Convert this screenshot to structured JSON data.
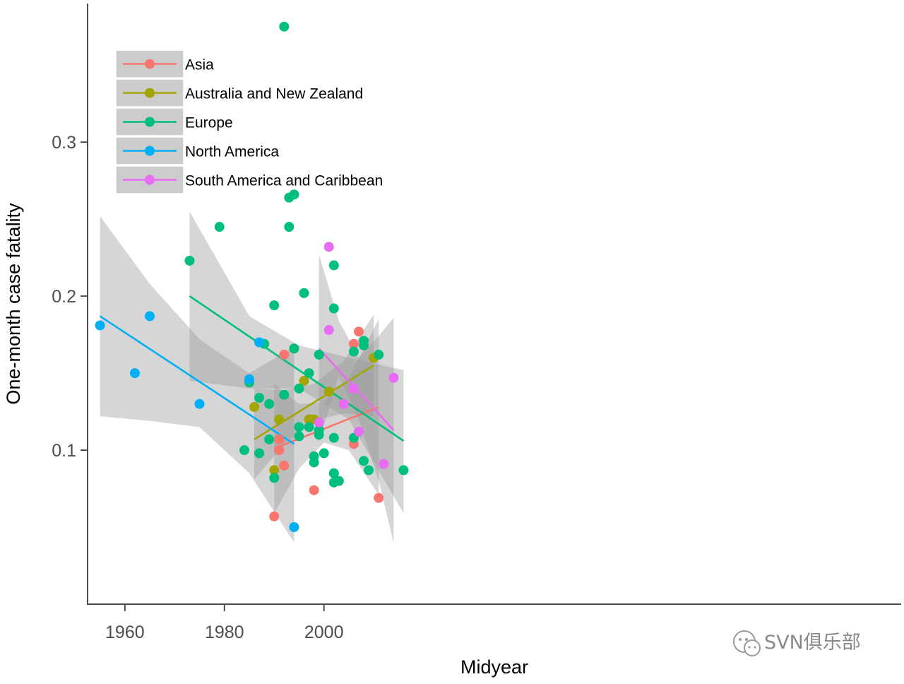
{
  "colors": {
    "Asia": "#F8766D",
    "Australia and New Zealand": "#A3A500",
    "Europe": "#00BF7D",
    "North America": "#00B0F6",
    "South America and Caribbean": "#E76BF3",
    "ribbon": "#999999",
    "axis": "#4d4d4d"
  },
  "watermark": {
    "text": "SVN俱乐部",
    "icon": "wechat-icon"
  },
  "chart_data": {
    "type": "scatter",
    "title": "",
    "xlabel": "Midyear",
    "ylabel": "One-month case fatality",
    "xlim": [
      1952.5,
      2116.0
    ],
    "ylim": [
      0.0,
      0.39
    ],
    "xticks": [
      1960,
      1980,
      2000
    ],
    "xtick_labels": [
      "1960",
      "1980",
      "2000"
    ],
    "yticks": [
      0.1,
      0.2,
      0.3
    ],
    "ytick_labels": [
      "0.1",
      "0.2",
      "0.3"
    ],
    "grid": false,
    "legend_position": "top-left",
    "series": [
      {
        "name": "Asia",
        "points": [
          [
            1990,
            0.057
          ],
          [
            1991,
            0.107
          ],
          [
            1991,
            0.1
          ],
          [
            1992,
            0.162
          ],
          [
            1992,
            0.09
          ],
          [
            1998,
            0.074
          ],
          [
            2006,
            0.169
          ],
          [
            2006,
            0.104
          ],
          [
            2007,
            0.177
          ],
          [
            2011,
            0.069
          ]
        ],
        "fit": {
          "x": [
            1990,
            2011
          ],
          "y": [
            0.101,
            0.128
          ]
        },
        "ci": {
          "x": [
            1990,
            1995,
            2000,
            2005,
            2011
          ],
          "upper": [
            0.143,
            0.13,
            0.131,
            0.147,
            0.185
          ],
          "lower": [
            0.059,
            0.088,
            0.105,
            0.1,
            0.071
          ]
        }
      },
      {
        "name": "Australia and New Zealand",
        "points": [
          [
            1986,
            0.128
          ],
          [
            1990,
            0.087
          ],
          [
            1991,
            0.12
          ],
          [
            1996,
            0.145
          ],
          [
            1997,
            0.12
          ],
          [
            1998,
            0.12
          ],
          [
            2001,
            0.138
          ],
          [
            2010,
            0.16
          ]
        ],
        "fit": {
          "x": [
            1986,
            2010
          ],
          "y": [
            0.107,
            0.155
          ]
        },
        "ci": {
          "x": [
            1986,
            1992,
            1998,
            2004,
            2010
          ],
          "upper": [
            0.14,
            0.139,
            0.143,
            0.158,
            0.188
          ],
          "lower": [
            0.081,
            0.104,
            0.119,
            0.124,
            0.122
          ]
        }
      },
      {
        "name": "Europe",
        "points": [
          [
            1973,
            0.223
          ],
          [
            1979,
            0.245
          ],
          [
            1984,
            0.1
          ],
          [
            1985,
            0.144
          ],
          [
            1987,
            0.134
          ],
          [
            1987,
            0.098
          ],
          [
            1988,
            0.169
          ],
          [
            1989,
            0.13
          ],
          [
            1989,
            0.107
          ],
          [
            1990,
            0.194
          ],
          [
            1990,
            0.082
          ],
          [
            1992,
            0.375
          ],
          [
            1992,
            0.136
          ],
          [
            1993,
            0.264
          ],
          [
            1993,
            0.245
          ],
          [
            1994,
            0.266
          ],
          [
            1994,
            0.166
          ],
          [
            1995,
            0.14
          ],
          [
            1995,
            0.115
          ],
          [
            1995,
            0.109
          ],
          [
            1996,
            0.202
          ],
          [
            1997,
            0.15
          ],
          [
            1997,
            0.115
          ],
          [
            1998,
            0.096
          ],
          [
            1998,
            0.092
          ],
          [
            1999,
            0.162
          ],
          [
            1999,
            0.11
          ],
          [
            1999,
            0.113
          ],
          [
            2000,
            0.098
          ],
          [
            2002,
            0.22
          ],
          [
            2002,
            0.192
          ],
          [
            2002,
            0.108
          ],
          [
            2002,
            0.085
          ],
          [
            2002,
            0.079
          ],
          [
            2003,
            0.08
          ],
          [
            2006,
            0.164
          ],
          [
            2006,
            0.108
          ],
          [
            2008,
            0.171
          ],
          [
            2008,
            0.168
          ],
          [
            2008,
            0.093
          ],
          [
            2009,
            0.087
          ],
          [
            2011,
            0.162
          ],
          [
            2016,
            0.087
          ]
        ],
        "fit": {
          "x": [
            1973,
            2016
          ],
          "y": [
            0.2,
            0.106
          ]
        },
        "ci": {
          "x": [
            1973,
            1985,
            1995,
            2005,
            2016
          ],
          "upper": [
            0.255,
            0.187,
            0.168,
            0.16,
            0.152
          ],
          "lower": [
            0.145,
            0.14,
            0.14,
            0.12,
            0.059
          ]
        }
      },
      {
        "name": "North America",
        "points": [
          [
            1955,
            0.181
          ],
          [
            1962,
            0.15
          ],
          [
            1965,
            0.187
          ],
          [
            1975,
            0.13
          ],
          [
            1985,
            0.146
          ],
          [
            1987,
            0.17
          ],
          [
            1994,
            0.05
          ]
        ],
        "fit": {
          "x": [
            1955,
            1994
          ],
          "y": [
            0.187,
            0.104
          ]
        },
        "ci": {
          "x": [
            1955,
            1965,
            1975,
            1985,
            1994
          ],
          "upper": [
            0.252,
            0.208,
            0.172,
            0.15,
            0.167
          ],
          "lower": [
            0.122,
            0.119,
            0.115,
            0.085,
            0.04
          ]
        }
      },
      {
        "name": "South America and Caribbean",
        "points": [
          [
            1999,
            0.118
          ],
          [
            2001,
            0.232
          ],
          [
            2001,
            0.178
          ],
          [
            2004,
            0.13
          ],
          [
            2006,
            0.14
          ],
          [
            2007,
            0.112
          ],
          [
            2012,
            0.091
          ],
          [
            2014,
            0.147
          ]
        ],
        "fit": {
          "x": [
            1999,
            2014
          ],
          "y": [
            0.166,
            0.113
          ]
        },
        "ci": {
          "x": [
            1999,
            2003,
            2007,
            2011,
            2014
          ],
          "upper": [
            0.227,
            0.184,
            0.16,
            0.174,
            0.186
          ],
          "lower": [
            0.105,
            0.148,
            0.12,
            0.08,
            0.04
          ]
        }
      }
    ]
  }
}
